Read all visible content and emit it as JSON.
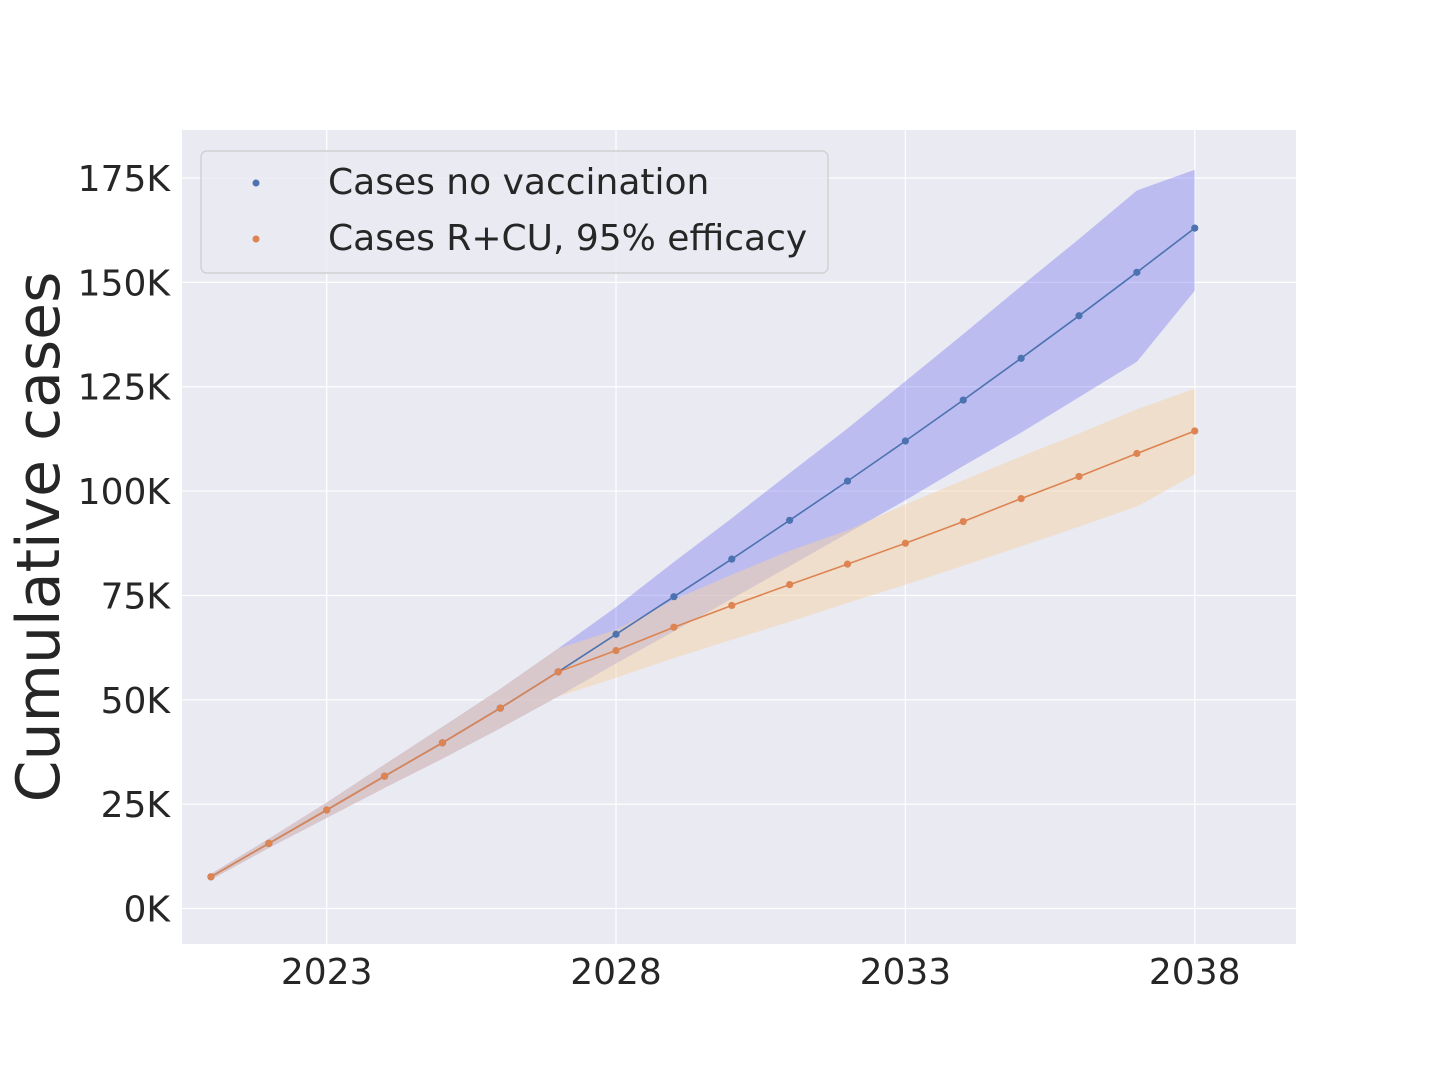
{
  "chart_data": {
    "type": "line",
    "title": "",
    "xlabel": "",
    "ylabel": "Cumulative cases",
    "xlim": [
      2020.5,
      2039.75
    ],
    "ylim": [
      -8500,
      186500
    ],
    "x_ticks": [
      2023,
      2028,
      2033,
      2038
    ],
    "x_tick_labels": [
      "2023",
      "2028",
      "2033",
      "2038"
    ],
    "y_ticks": [
      0,
      25000,
      50000,
      75000,
      100000,
      125000,
      150000,
      175000
    ],
    "y_tick_labels": [
      "0K",
      "25K",
      "50K",
      "75K",
      "100K",
      "125K",
      "150K",
      "175K"
    ],
    "grid": true,
    "legend_position": "top-left",
    "x": [
      2021,
      2022,
      2023,
      2024,
      2025,
      2026,
      2027,
      2028,
      2029,
      2030,
      2031,
      2032,
      2033,
      2034,
      2035,
      2036,
      2037,
      2038
    ],
    "series": [
      {
        "name": "Cases no vaccination",
        "color": "#4c72b0",
        "band_color": "#7777f0",
        "values": [
          7600,
          15600,
          23600,
          31700,
          39700,
          48000,
          56700,
          65700,
          74700,
          83700,
          93000,
          102400,
          112000,
          121800,
          131800,
          142000,
          152400,
          163000
        ],
        "lower": [
          6900,
          14500,
          21700,
          28900,
          35900,
          43200,
          50800,
          58700,
          66400,
          74200,
          82000,
          89900,
          97800,
          106000,
          114000,
          122500,
          131000,
          148000
        ],
        "upper": [
          8300,
          16700,
          25400,
          34500,
          43500,
          52600,
          62300,
          72200,
          83000,
          93500,
          104300,
          115000,
          126300,
          137600,
          149100,
          160400,
          172000,
          177000
        ]
      },
      {
        "name": "Cases R+CU, 95% efficacy",
        "color": "#dd8452",
        "band_color": "#f4d2a6",
        "values": [
          7600,
          15600,
          23600,
          31700,
          39700,
          48000,
          56700,
          61800,
          67400,
          72600,
          77600,
          82500,
          87500,
          92700,
          98200,
          103500,
          109000,
          114400
        ],
        "lower": [
          6900,
          14500,
          21700,
          28900,
          35900,
          43200,
          50800,
          55300,
          60000,
          64400,
          68700,
          73200,
          77600,
          82100,
          86800,
          91500,
          96300,
          104000
        ],
        "upper": [
          8300,
          16700,
          25400,
          34500,
          43500,
          52600,
          62300,
          66800,
          74000,
          80000,
          85700,
          90600,
          96800,
          102600,
          108300,
          113800,
          119600,
          124500
        ]
      }
    ]
  }
}
